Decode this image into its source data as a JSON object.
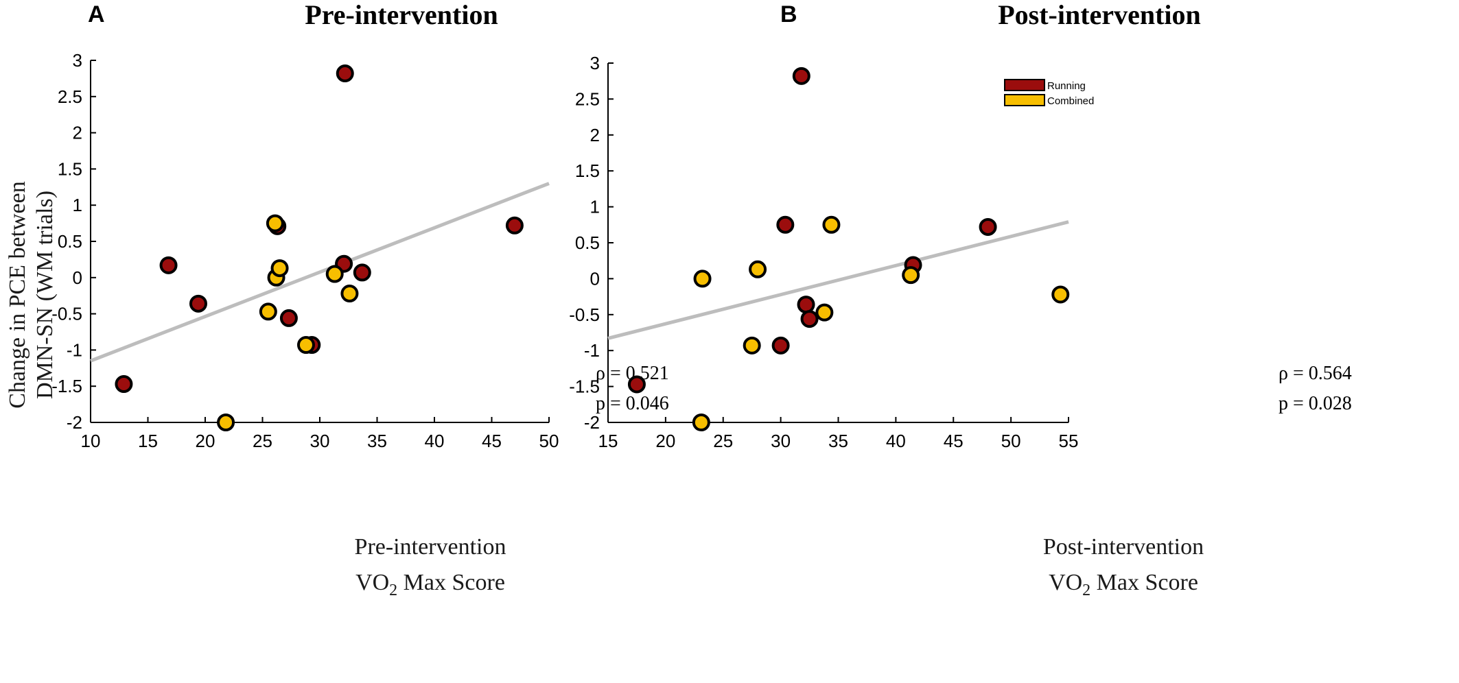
{
  "colors": {
    "running": "#9b0d0d",
    "combined": "#f7be00",
    "outline": "#000000",
    "fit": "#bdbdbd"
  },
  "shared": {
    "ylabel_line1": "Change in PCE between",
    "ylabel_line2": "DMN-SN  (WM trials)"
  },
  "chart_data": [
    {
      "type": "scatter",
      "panel_label": "A",
      "title": "Pre-intervention",
      "xlabel_line1": "Pre-intervention",
      "xlabel_vo": "VO",
      "xlabel_sub": "2",
      "xlabel_rest": " Max Score",
      "xlim": [
        10,
        50
      ],
      "ylim": [
        -2,
        3
      ],
      "xticks": [
        10,
        15,
        20,
        25,
        30,
        35,
        40,
        45,
        50
      ],
      "yticks": [
        -2,
        -1.5,
        -1,
        -0.5,
        0,
        0.5,
        1,
        1.5,
        2,
        2.5,
        3
      ],
      "fit_line": [
        [
          10,
          -1.15
        ],
        [
          50,
          1.3
        ]
      ],
      "stat_rho": "ρ = 0.521",
      "stat_p": "p = 0.046",
      "series": [
        {
          "name": "Running",
          "color_key": "running",
          "points": [
            [
              12.9,
              -1.47
            ],
            [
              16.8,
              0.17
            ],
            [
              19.4,
              -0.36
            ],
            [
              26.3,
              0.71
            ],
            [
              27.3,
              -0.56
            ],
            [
              29.3,
              -0.93
            ],
            [
              32.1,
              0.19
            ],
            [
              32.2,
              2.82
            ],
            [
              33.7,
              0.07
            ],
            [
              47.0,
              0.72
            ]
          ]
        },
        {
          "name": "Combined",
          "color_key": "combined",
          "points": [
            [
              21.8,
              -2.0
            ],
            [
              25.5,
              -0.47
            ],
            [
              26.1,
              0.75
            ],
            [
              26.2,
              0.0
            ],
            [
              26.5,
              0.13
            ],
            [
              28.8,
              -0.93
            ],
            [
              31.3,
              0.05
            ],
            [
              32.6,
              -0.22
            ]
          ]
        }
      ]
    },
    {
      "type": "scatter",
      "panel_label": "B",
      "title": "Post-intervention",
      "xlabel_line1": "Post-intervention",
      "xlabel_vo": "VO",
      "xlabel_sub": "2",
      "xlabel_rest": " Max Score",
      "xlim": [
        15,
        55
      ],
      "ylim": [
        -2,
        3
      ],
      "xticks": [
        15,
        20,
        25,
        30,
        35,
        40,
        45,
        50,
        55
      ],
      "yticks": [
        -2,
        -1.5,
        -1,
        -0.5,
        0,
        0.5,
        1,
        1.5,
        2,
        2.5,
        3
      ],
      "fit_line": [
        [
          15,
          -0.83
        ],
        [
          55,
          0.79
        ]
      ],
      "stat_rho": "ρ = 0.564",
      "stat_p": "p = 0.028",
      "legend": [
        {
          "label": "Running",
          "color_key": "running"
        },
        {
          "label": "Combined",
          "color_key": "combined"
        }
      ],
      "series": [
        {
          "name": "Running",
          "color_key": "running",
          "points": [
            [
              17.5,
              -1.47
            ],
            [
              30.0,
              -0.93
            ],
            [
              30.4,
              0.75
            ],
            [
              31.8,
              2.82
            ],
            [
              32.2,
              -0.36
            ],
            [
              32.5,
              -0.56
            ],
            [
              41.5,
              0.19
            ],
            [
              48.0,
              0.72
            ]
          ]
        },
        {
          "name": "Combined",
          "color_key": "combined",
          "points": [
            [
              23.1,
              -2.0
            ],
            [
              23.2,
              0.0
            ],
            [
              27.5,
              -0.93
            ],
            [
              28.0,
              0.13
            ],
            [
              33.8,
              -0.47
            ],
            [
              34.4,
              0.75
            ],
            [
              41.3,
              0.05
            ],
            [
              54.3,
              -0.22
            ]
          ]
        }
      ]
    }
  ]
}
